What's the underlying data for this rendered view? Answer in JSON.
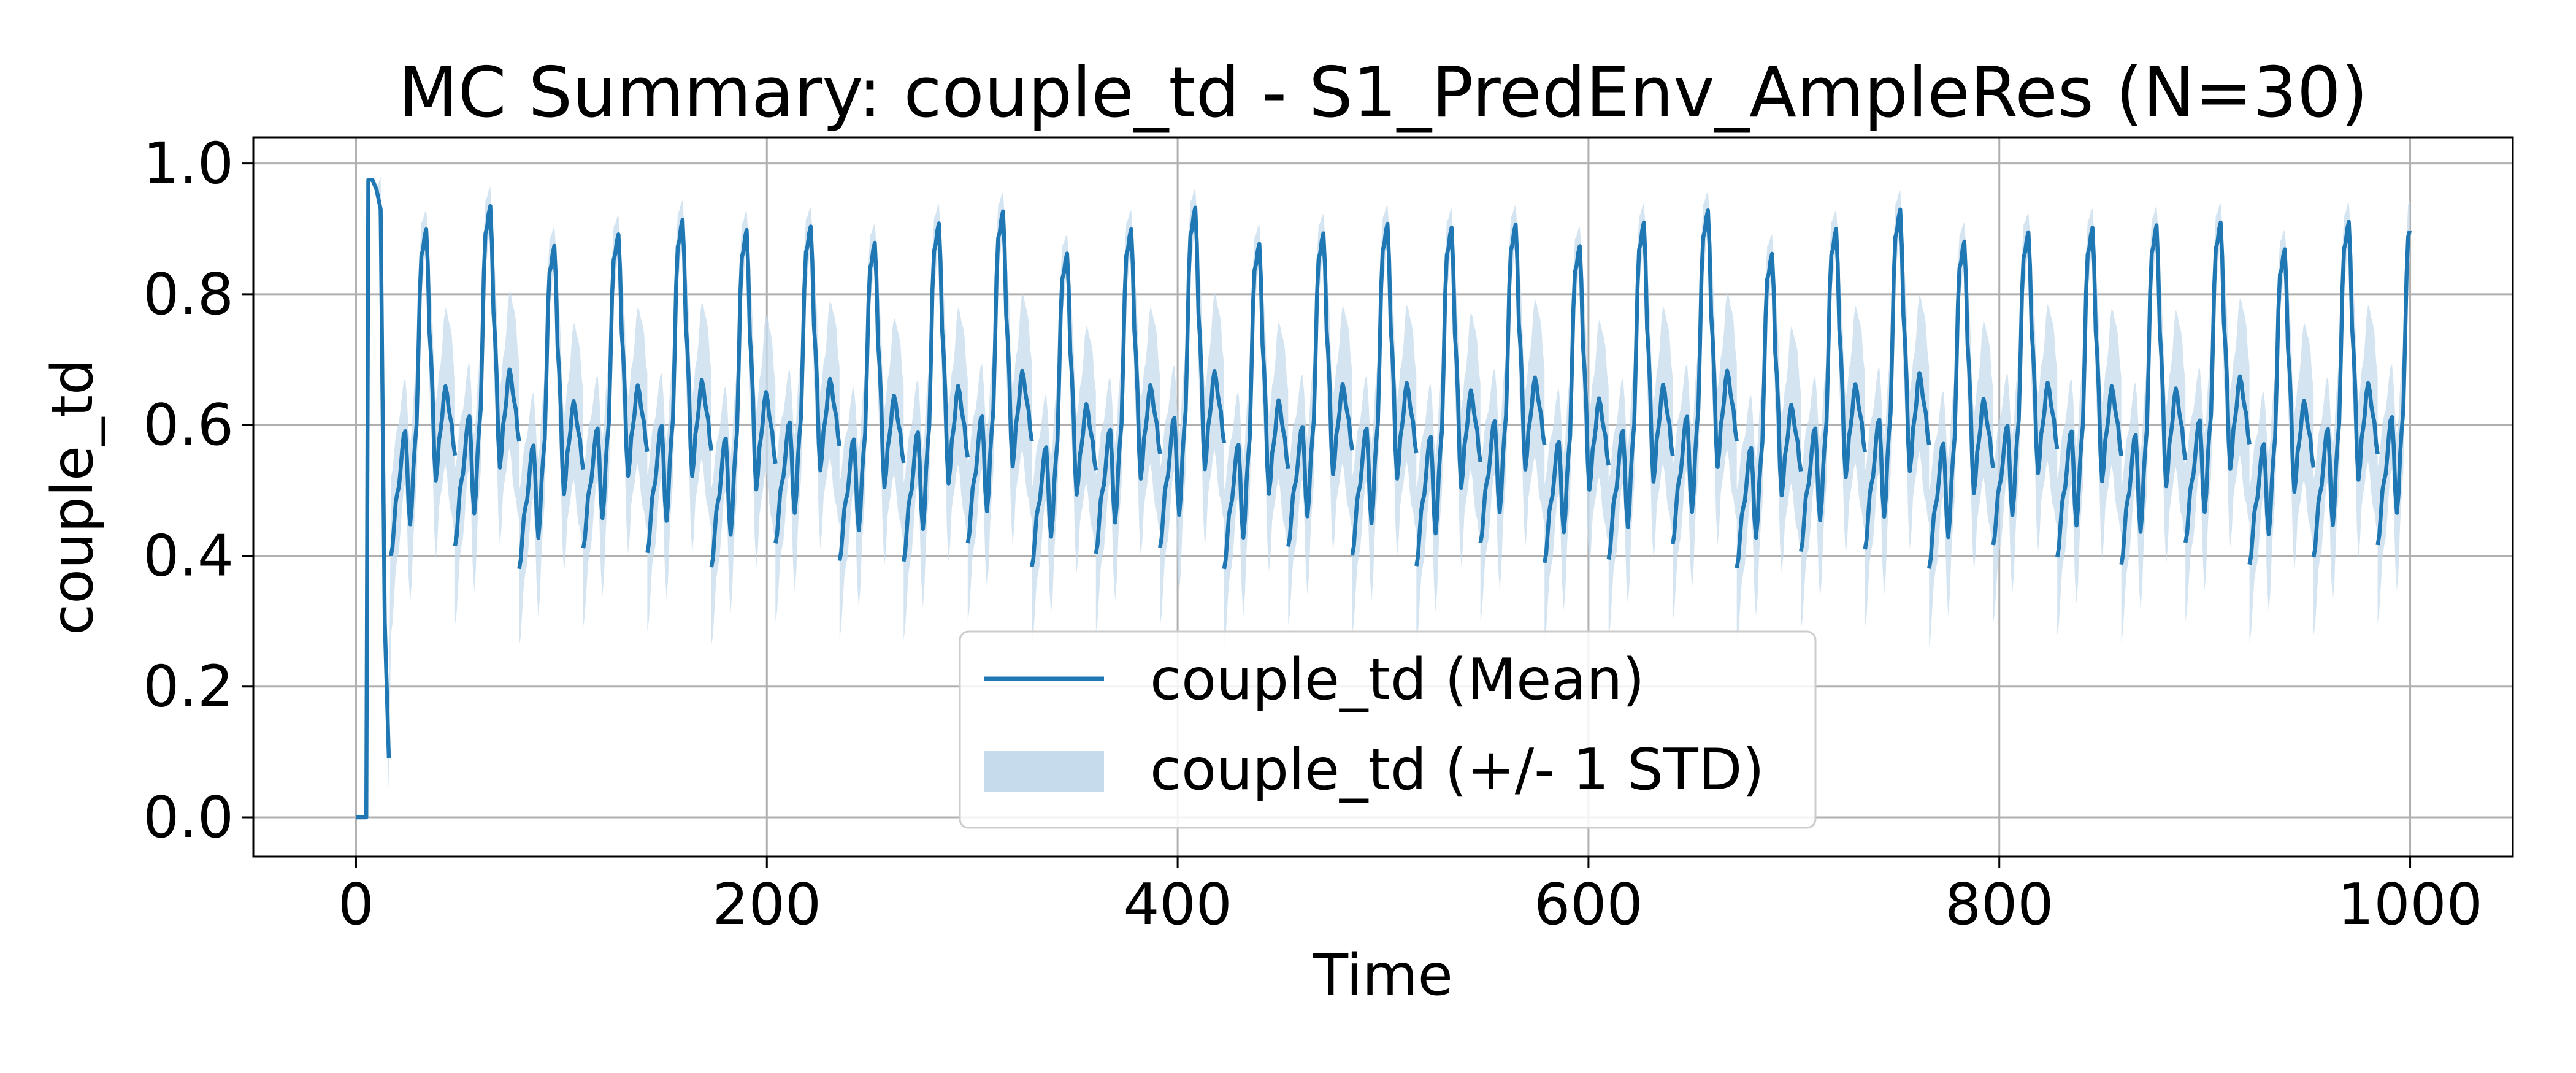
{
  "chart_data": {
    "type": "line",
    "title": "MC Summary: couple_td - S1_PredEnv_AmpleRes (N=30)",
    "xlabel": "Time",
    "ylabel": "couple_td",
    "xlim": [
      -50,
      1050
    ],
    "ylim": [
      -0.06,
      1.04
    ],
    "xticks": [
      0,
      200,
      400,
      600,
      800,
      1000
    ],
    "yticks": [
      0.0,
      0.2,
      0.4,
      0.6,
      0.8,
      1.0
    ],
    "xtick_labels": [
      "0",
      "200",
      "400",
      "600",
      "800",
      "1000"
    ],
    "ytick_labels": [
      "0.0",
      "0.2",
      "0.4",
      "0.6",
      "0.8",
      "1.0"
    ],
    "grid": true,
    "legend_position": "bottom-center",
    "legend": {
      "mean_label": "couple_td (Mean)",
      "std_label": "couple_td (+/- 1 STD)"
    },
    "colors": {
      "mean_line": "#1f77b4",
      "std_band": "#c6dbec",
      "grid": "#b0b0b0",
      "axes": "#000000"
    },
    "initial_segment": {
      "x": [
        0,
        5,
        6,
        8,
        10,
        12,
        14,
        16
      ],
      "y": [
        0.0,
        0.0,
        0.975,
        0.975,
        0.96,
        0.93,
        0.3,
        0.09
      ]
    },
    "cycle_period": 31.2,
    "cycle_start": 17,
    "cycle_shape": {
      "phase": [
        0.0,
        0.1,
        0.22,
        0.3,
        0.38,
        0.48,
        0.55,
        0.62,
        0.7,
        0.77,
        0.85,
        0.93,
        1.0
      ],
      "value": [
        0.4,
        0.5,
        0.6,
        0.45,
        0.58,
        0.88,
        0.92,
        0.72,
        0.52,
        0.6,
        0.67,
        0.62,
        0.56
      ]
    },
    "std_shape": {
      "phase": [
        0.0,
        0.1,
        0.22,
        0.3,
        0.38,
        0.48,
        0.55,
        0.62,
        0.7,
        0.77,
        0.85,
        0.93,
        1.0
      ],
      "value": [
        0.12,
        0.1,
        0.08,
        0.12,
        0.1,
        0.05,
        0.03,
        0.1,
        0.12,
        0.1,
        0.12,
        0.14,
        0.12
      ]
    },
    "series": [
      {
        "name": "couple_td (Mean)",
        "x_end": 1000
      }
    ]
  }
}
